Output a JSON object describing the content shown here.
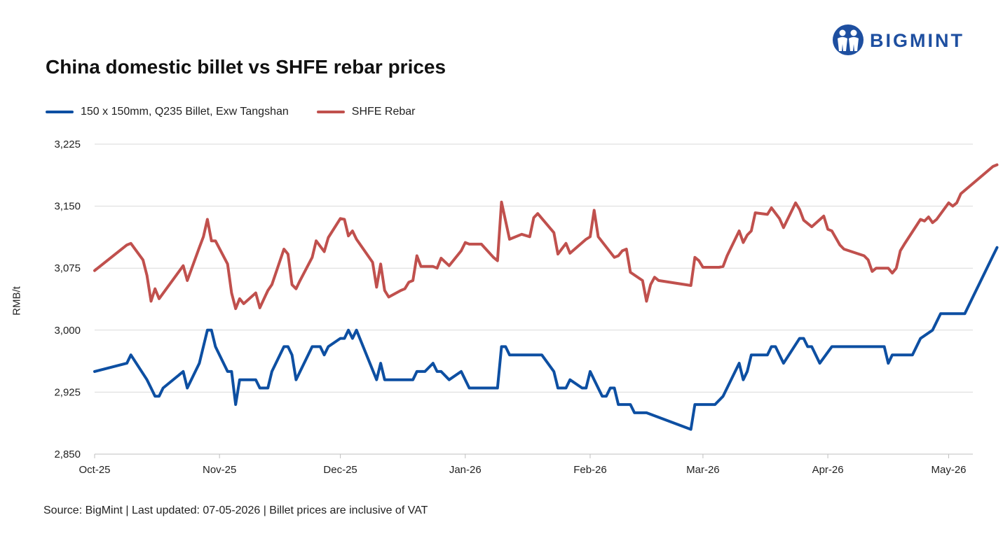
{
  "brand": {
    "name": "BIGMINT",
    "color": "#1e4fa0"
  },
  "chart_data": {
    "type": "line",
    "title": "China domestic billet vs SHFE rebar prices",
    "xlabel": "",
    "ylabel": "RMB/t",
    "ylim": [
      2850,
      3225
    ],
    "yticks": [
      2850,
      2925,
      3000,
      3075,
      3150,
      3225
    ],
    "ytick_labels": [
      "2,850",
      "2,925",
      "3,000",
      "3,075",
      "3,150",
      "3,225"
    ],
    "xlim": [
      "2025-10-01",
      "2026-05-07"
    ],
    "xticks": [
      {
        "date": "2025-10-01",
        "label": "Oct-25"
      },
      {
        "date": "2025-11-01",
        "label": "Nov-25"
      },
      {
        "date": "2025-12-01",
        "label": "Dec-25"
      },
      {
        "date": "2026-01-01",
        "label": "Jan-26"
      },
      {
        "date": "2026-02-01",
        "label": "Feb-26"
      },
      {
        "date": "2026-03-01",
        "label": "Mar-26"
      },
      {
        "date": "2026-04-01",
        "label": "Apr-26"
      },
      {
        "date": "2026-05-01",
        "label": "May-26"
      }
    ],
    "grid": "horizontal",
    "legend_position": "top-left",
    "series": [
      {
        "name": "150 x 150mm, Q235 Billet, Exw Tangshan",
        "color": "#0d4fa2",
        "points": [
          [
            "2025-10-01",
            2950
          ],
          [
            "2025-10-09",
            2960
          ],
          [
            "2025-10-10",
            2970
          ],
          [
            "2025-10-14",
            2940
          ],
          [
            "2025-10-15",
            2930
          ],
          [
            "2025-10-16",
            2920
          ],
          [
            "2025-10-17",
            2920
          ],
          [
            "2025-10-18",
            2930
          ],
          [
            "2025-10-23",
            2950
          ],
          [
            "2025-10-24",
            2930
          ],
          [
            "2025-10-27",
            2960
          ],
          [
            "2025-10-29",
            3000
          ],
          [
            "2025-10-30",
            3000
          ],
          [
            "2025-10-31",
            2980
          ],
          [
            "2025-11-03",
            2950
          ],
          [
            "2025-11-04",
            2950
          ],
          [
            "2025-11-05",
            2910
          ],
          [
            "2025-11-06",
            2940
          ],
          [
            "2025-11-10",
            2940
          ],
          [
            "2025-11-11",
            2930
          ],
          [
            "2025-11-13",
            2930
          ],
          [
            "2025-11-14",
            2950
          ],
          [
            "2025-11-17",
            2980
          ],
          [
            "2025-11-18",
            2980
          ],
          [
            "2025-11-19",
            2970
          ],
          [
            "2025-11-20",
            2940
          ],
          [
            "2025-11-24",
            2980
          ],
          [
            "2025-11-26",
            2980
          ],
          [
            "2025-11-27",
            2970
          ],
          [
            "2025-11-28",
            2980
          ],
          [
            "2025-12-01",
            2990
          ],
          [
            "2025-12-02",
            2990
          ],
          [
            "2025-12-03",
            3000
          ],
          [
            "2025-12-04",
            2990
          ],
          [
            "2025-12-05",
            3000
          ],
          [
            "2025-12-10",
            2940
          ],
          [
            "2025-12-11",
            2960
          ],
          [
            "2025-12-12",
            2940
          ],
          [
            "2025-12-19",
            2940
          ],
          [
            "2025-12-20",
            2950
          ],
          [
            "2025-12-22",
            2950
          ],
          [
            "2025-12-24",
            2960
          ],
          [
            "2025-12-25",
            2950
          ],
          [
            "2025-12-26",
            2950
          ],
          [
            "2025-12-28",
            2940
          ],
          [
            "2025-12-31",
            2950
          ],
          [
            "2026-01-02",
            2930
          ],
          [
            "2026-01-09",
            2930
          ],
          [
            "2026-01-10",
            2980
          ],
          [
            "2026-01-11",
            2980
          ],
          [
            "2026-01-12",
            2970
          ],
          [
            "2026-01-19",
            2970
          ],
          [
            "2026-01-20",
            2970
          ],
          [
            "2026-01-23",
            2950
          ],
          [
            "2026-01-24",
            2930
          ],
          [
            "2026-01-26",
            2930
          ],
          [
            "2026-01-27",
            2940
          ],
          [
            "2026-01-30",
            2930
          ],
          [
            "2026-01-31",
            2930
          ],
          [
            "2026-02-01",
            2950
          ],
          [
            "2026-02-02",
            2940
          ],
          [
            "2026-02-04",
            2920
          ],
          [
            "2026-02-05",
            2920
          ],
          [
            "2026-02-06",
            2930
          ],
          [
            "2026-02-07",
            2930
          ],
          [
            "2026-02-08",
            2910
          ],
          [
            "2026-02-11",
            2910
          ],
          [
            "2026-02-12",
            2900
          ],
          [
            "2026-02-15",
            2900
          ],
          [
            "2026-02-26",
            2880
          ],
          [
            "2026-02-27",
            2910
          ],
          [
            "2026-03-04",
            2910
          ],
          [
            "2026-03-06",
            2920
          ],
          [
            "2026-03-10",
            2960
          ],
          [
            "2026-03-11",
            2940
          ],
          [
            "2026-03-12",
            2950
          ],
          [
            "2026-03-13",
            2970
          ],
          [
            "2026-03-17",
            2970
          ],
          [
            "2026-03-18",
            2980
          ],
          [
            "2026-03-19",
            2980
          ],
          [
            "2026-03-21",
            2960
          ],
          [
            "2026-03-25",
            2990
          ],
          [
            "2026-03-26",
            2990
          ],
          [
            "2026-03-27",
            2980
          ],
          [
            "2026-03-28",
            2980
          ],
          [
            "2026-03-30",
            2960
          ],
          [
            "2026-04-02",
            2980
          ],
          [
            "2026-04-15",
            2980
          ],
          [
            "2026-04-16",
            2960
          ],
          [
            "2026-04-17",
            2970
          ],
          [
            "2026-04-22",
            2970
          ],
          [
            "2026-04-24",
            2990
          ],
          [
            "2026-04-27",
            3000
          ],
          [
            "2026-04-29",
            3020
          ],
          [
            "2026-05-05",
            3020
          ],
          [
            "2026-05-07",
            3040
          ],
          [
            "2026-05-12",
            3090
          ],
          [
            "2026-05-13",
            3100
          ]
        ]
      },
      {
        "name": "SHFE Rebar",
        "color": "#c0504d",
        "points": [
          [
            "2025-10-01",
            3072
          ],
          [
            "2025-10-09",
            3103
          ],
          [
            "2025-10-10",
            3105
          ],
          [
            "2025-10-13",
            3085
          ],
          [
            "2025-10-14",
            3066
          ],
          [
            "2025-10-15",
            3035
          ],
          [
            "2025-10-16",
            3050
          ],
          [
            "2025-10-17",
            3038
          ],
          [
            "2025-10-23",
            3078
          ],
          [
            "2025-10-24",
            3060
          ],
          [
            "2025-10-27",
            3100
          ],
          [
            "2025-10-28",
            3113
          ],
          [
            "2025-10-29",
            3134
          ],
          [
            "2025-10-30",
            3108
          ],
          [
            "2025-10-31",
            3108
          ],
          [
            "2025-11-03",
            3080
          ],
          [
            "2025-11-04",
            3045
          ],
          [
            "2025-11-05",
            3026
          ],
          [
            "2025-11-06",
            3038
          ],
          [
            "2025-11-07",
            3032
          ],
          [
            "2025-11-10",
            3045
          ],
          [
            "2025-11-11",
            3027
          ],
          [
            "2025-11-13",
            3048
          ],
          [
            "2025-11-14",
            3055
          ],
          [
            "2025-11-17",
            3098
          ],
          [
            "2025-11-18",
            3092
          ],
          [
            "2025-11-19",
            3055
          ],
          [
            "2025-11-20",
            3050
          ],
          [
            "2025-11-21",
            3060
          ],
          [
            "2025-11-24",
            3088
          ],
          [
            "2025-11-25",
            3108
          ],
          [
            "2025-11-27",
            3095
          ],
          [
            "2025-11-28",
            3112
          ],
          [
            "2025-12-01",
            3135
          ],
          [
            "2025-12-02",
            3134
          ],
          [
            "2025-12-03",
            3114
          ],
          [
            "2025-12-04",
            3120
          ],
          [
            "2025-12-05",
            3110
          ],
          [
            "2025-12-09",
            3082
          ],
          [
            "2025-12-10",
            3052
          ],
          [
            "2025-12-11",
            3080
          ],
          [
            "2025-12-12",
            3048
          ],
          [
            "2025-12-13",
            3040
          ],
          [
            "2025-12-16",
            3048
          ],
          [
            "2025-12-17",
            3050
          ],
          [
            "2025-12-18",
            3058
          ],
          [
            "2025-12-19",
            3060
          ],
          [
            "2025-12-20",
            3090
          ],
          [
            "2025-12-21",
            3077
          ],
          [
            "2025-12-24",
            3077
          ],
          [
            "2025-12-25",
            3075
          ],
          [
            "2025-12-26",
            3087
          ],
          [
            "2025-12-28",
            3078
          ],
          [
            "2025-12-31",
            3096
          ],
          [
            "2026-01-01",
            3106
          ],
          [
            "2026-01-02",
            3104
          ],
          [
            "2026-01-05",
            3104
          ],
          [
            "2026-01-08",
            3088
          ],
          [
            "2026-01-09",
            3084
          ],
          [
            "2026-01-10",
            3155
          ],
          [
            "2026-01-12",
            3110
          ],
          [
            "2026-01-15",
            3116
          ],
          [
            "2026-01-17",
            3113
          ],
          [
            "2026-01-18",
            3136
          ],
          [
            "2026-01-19",
            3141
          ],
          [
            "2026-01-23",
            3118
          ],
          [
            "2026-01-24",
            3092
          ],
          [
            "2026-01-26",
            3105
          ],
          [
            "2026-01-27",
            3093
          ],
          [
            "2026-01-31",
            3110
          ],
          [
            "2026-02-01",
            3113
          ],
          [
            "2026-02-02",
            3145
          ],
          [
            "2026-02-03",
            3113
          ],
          [
            "2026-02-07",
            3088
          ],
          [
            "2026-02-08",
            3090
          ],
          [
            "2026-02-09",
            3096
          ],
          [
            "2026-02-10",
            3098
          ],
          [
            "2026-02-11",
            3070
          ],
          [
            "2026-02-14",
            3060
          ],
          [
            "2026-02-15",
            3035
          ],
          [
            "2026-02-16",
            3055
          ],
          [
            "2026-02-17",
            3064
          ],
          [
            "2026-02-18",
            3060
          ],
          [
            "2026-02-26",
            3054
          ],
          [
            "2026-02-27",
            3088
          ],
          [
            "2026-02-28",
            3084
          ],
          [
            "2026-03-01",
            3076
          ],
          [
            "2026-03-05",
            3076
          ],
          [
            "2026-03-06",
            3077
          ],
          [
            "2026-03-07",
            3090
          ],
          [
            "2026-03-10",
            3120
          ],
          [
            "2026-03-11",
            3106
          ],
          [
            "2026-03-12",
            3115
          ],
          [
            "2026-03-13",
            3120
          ],
          [
            "2026-03-14",
            3142
          ],
          [
            "2026-03-17",
            3140
          ],
          [
            "2026-03-18",
            3148
          ],
          [
            "2026-03-20",
            3135
          ],
          [
            "2026-03-21",
            3124
          ],
          [
            "2026-03-24",
            3154
          ],
          [
            "2026-03-25",
            3146
          ],
          [
            "2026-03-26",
            3133
          ],
          [
            "2026-03-28",
            3125
          ],
          [
            "2026-03-31",
            3138
          ],
          [
            "2026-04-01",
            3122
          ],
          [
            "2026-04-02",
            3120
          ],
          [
            "2026-04-04",
            3103
          ],
          [
            "2026-04-05",
            3098
          ],
          [
            "2026-04-10",
            3090
          ],
          [
            "2026-04-11",
            3085
          ],
          [
            "2026-04-12",
            3071
          ],
          [
            "2026-04-13",
            3075
          ],
          [
            "2026-04-16",
            3075
          ],
          [
            "2026-04-17",
            3069
          ],
          [
            "2026-04-18",
            3075
          ],
          [
            "2026-04-19",
            3096
          ],
          [
            "2026-04-20",
            3104
          ],
          [
            "2026-04-24",
            3134
          ],
          [
            "2026-04-25",
            3132
          ],
          [
            "2026-04-26",
            3137
          ],
          [
            "2026-04-27",
            3130
          ],
          [
            "2026-04-28",
            3134
          ],
          [
            "2026-05-01",
            3154
          ],
          [
            "2026-05-02",
            3150
          ],
          [
            "2026-05-03",
            3154
          ],
          [
            "2026-05-04",
            3165
          ],
          [
            "2026-05-12",
            3198
          ],
          [
            "2026-05-13",
            3200
          ]
        ]
      }
    ]
  },
  "source": "Source: BigMint | Last updated: 07-05-2026 | Billet prices are inclusive of VAT"
}
